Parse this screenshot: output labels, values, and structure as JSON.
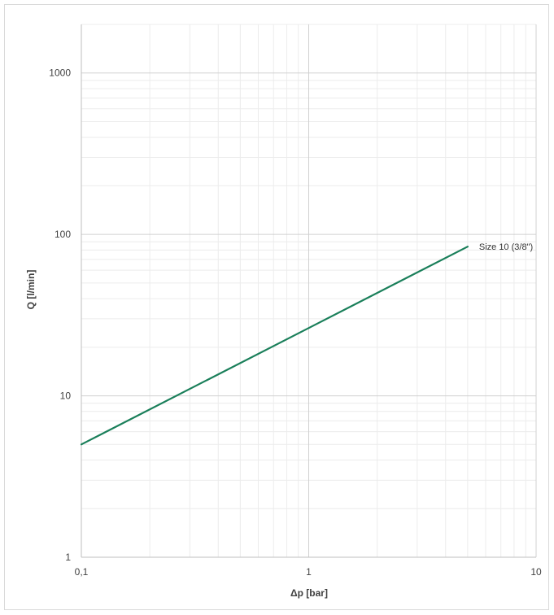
{
  "chart_data": {
    "type": "line",
    "title": "",
    "xlabel": "Δp [bar]",
    "ylabel": "Q [l/min]",
    "x_scale": "log",
    "y_scale": "log",
    "xlim": [
      0.1,
      10
    ],
    "ylim": [
      1,
      2000
    ],
    "x_ticks": [
      {
        "value": 0.1,
        "label": "0,1"
      },
      {
        "value": 1,
        "label": "1"
      },
      {
        "value": 10,
        "label": "10"
      }
    ],
    "y_ticks": [
      {
        "value": 1,
        "label": "1"
      },
      {
        "value": 10,
        "label": "10"
      },
      {
        "value": 100,
        "label": "100"
      },
      {
        "value": 1000,
        "label": "1000"
      }
    ],
    "grid": true,
    "legend": "none",
    "series": [
      {
        "name": "Size 10 (3/8\")",
        "color": "#1a7f5a",
        "x": [
          0.1,
          5
        ],
        "y": [
          5,
          84
        ]
      }
    ]
  }
}
